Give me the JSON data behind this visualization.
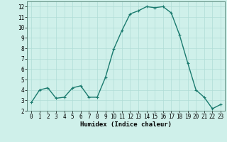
{
  "x": [
    0,
    1,
    2,
    3,
    4,
    5,
    6,
    7,
    8,
    9,
    10,
    11,
    12,
    13,
    14,
    15,
    16,
    17,
    18,
    19,
    20,
    21,
    22,
    23
  ],
  "y": [
    2.8,
    4.0,
    4.2,
    3.2,
    3.3,
    4.2,
    4.4,
    3.3,
    3.3,
    5.2,
    7.9,
    9.7,
    11.3,
    11.6,
    12.0,
    11.9,
    12.0,
    11.4,
    9.3,
    6.6,
    4.0,
    3.3,
    2.2,
    2.6
  ],
  "line_color": "#1a7a6e",
  "marker": "+",
  "marker_size": 3,
  "bg_color": "#cff0ea",
  "grid_color": "#b0ddd6",
  "xlabel": "Humidex (Indice chaleur)",
  "xlim": [
    -0.5,
    23.5
  ],
  "ylim": [
    2,
    12.5
  ],
  "yticks": [
    2,
    3,
    4,
    5,
    6,
    7,
    8,
    9,
    10,
    11,
    12
  ],
  "xticks": [
    0,
    1,
    2,
    3,
    4,
    5,
    6,
    7,
    8,
    9,
    10,
    11,
    12,
    13,
    14,
    15,
    16,
    17,
    18,
    19,
    20,
    21,
    22,
    23
  ],
  "xlabel_fontsize": 6.5,
  "tick_fontsize": 5.5,
  "linewidth": 1.0
}
